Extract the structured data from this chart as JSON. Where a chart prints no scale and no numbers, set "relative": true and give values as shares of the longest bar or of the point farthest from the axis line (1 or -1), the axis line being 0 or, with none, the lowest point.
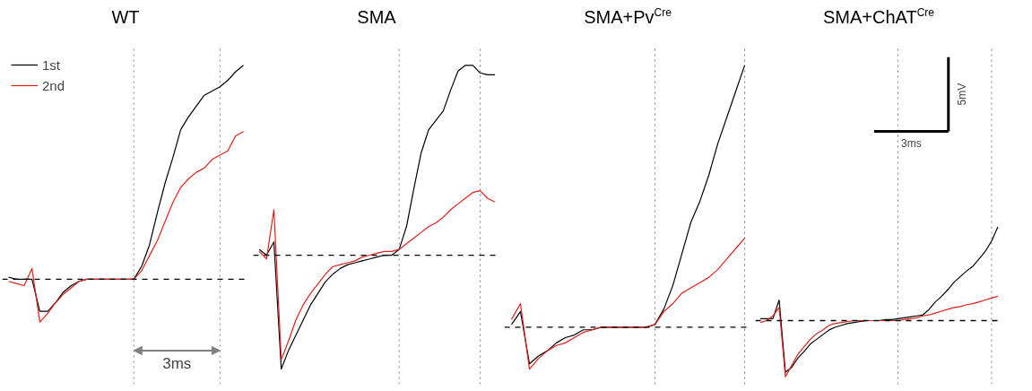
{
  "chart_data": [
    {
      "type": "line",
      "title": "WT",
      "relative": true,
      "tick_labels": false,
      "legend": "top left",
      "categories": [
        null,
        null,
        null,
        null,
        null,
        null,
        null,
        null,
        null,
        null,
        null,
        null,
        null,
        null,
        null,
        null,
        null,
        null,
        null,
        null,
        null,
        null,
        null,
        null,
        null,
        null,
        null,
        null,
        null,
        null,
        null
      ],
      "series": [
        {
          "name": "1st",
          "color": "#000000",
          "values": [
            0.01,
            0,
            0,
            0,
            -0.15,
            -0.15,
            -0.11,
            -0.06,
            -0.03,
            -0.01,
            0,
            0,
            0,
            0,
            0,
            0,
            0,
            0.06,
            0.16,
            0.31,
            0.45,
            0.57,
            0.7,
            0.76,
            0.81,
            0.86,
            0.88,
            0.9,
            0.93,
            0.97,
            1
          ]
        },
        {
          "name": "2nd",
          "color": "#e0201b",
          "values": [
            -0.01,
            -0.02,
            -0.03,
            0.05,
            -0.2,
            -0.16,
            -0.11,
            -0.07,
            -0.04,
            -0.01,
            0,
            0,
            0,
            0,
            0,
            0,
            0,
            0.04,
            0.11,
            0.18,
            0.27,
            0.36,
            0.43,
            0.47,
            0.5,
            0.52,
            0.56,
            0.58,
            0.6,
            0.67,
            0.69
          ]
        }
      ],
      "ref_lines": [
        {
          "axis": "y",
          "value": 0,
          "color": "#000000",
          "line_style": "dashed"
        }
      ],
      "annotations": [
        "3ms"
      ]
    },
    {
      "type": "line",
      "title": "SMA",
      "relative": true,
      "tick_labels": false,
      "categories": [
        null,
        null,
        null,
        null,
        null,
        null,
        null,
        null,
        null,
        null,
        null,
        null,
        null,
        null,
        null,
        null,
        null,
        null,
        null,
        null,
        null,
        null,
        null,
        null,
        null,
        null,
        null,
        null,
        null,
        null,
        null,
        null,
        null
      ],
      "series": [
        {
          "color": "#000000",
          "values": [
            0.03,
            0,
            0.07,
            -0.6,
            -0.5,
            -0.42,
            -0.34,
            -0.26,
            -0.2,
            -0.14,
            -0.1,
            -0.07,
            -0.05,
            -0.04,
            -0.03,
            -0.02,
            -0.01,
            0,
            0,
            0.03,
            0.15,
            0.35,
            0.54,
            0.66,
            0.71,
            0.76,
            0.87,
            0.97,
            1,
            1,
            0.96,
            0.95,
            0.95
          ]
        },
        {
          "color": "#e0201b",
          "values": [
            0.02,
            -0.02,
            0.24,
            -0.55,
            -0.45,
            -0.34,
            -0.26,
            -0.2,
            -0.15,
            -0.1,
            -0.06,
            -0.05,
            -0.04,
            -0.03,
            -0.01,
            0,
            0.01,
            0.02,
            0.02,
            0.03,
            0.06,
            0.09,
            0.12,
            0.15,
            0.17,
            0.2,
            0.24,
            0.27,
            0.3,
            0.33,
            0.34,
            0.3,
            0.28
          ]
        }
      ],
      "ref_lines": [
        {
          "axis": "y",
          "value": 0,
          "color": "#000000",
          "line_style": "dashed"
        }
      ]
    },
    {
      "type": "line",
      "title": "SMA+Pv$^{Cre}$",
      "relative": true,
      "tick_labels": false,
      "categories": [
        null,
        null,
        null,
        null,
        null,
        null,
        null,
        null,
        null,
        null,
        null,
        null,
        null,
        null,
        null,
        null,
        null,
        null,
        null,
        null,
        null,
        null,
        null,
        null,
        null,
        null,
        null
      ],
      "series": [
        {
          "color": "#000000",
          "values": [
            0.01,
            0.06,
            -0.14,
            -0.11,
            -0.09,
            -0.06,
            -0.04,
            -0.03,
            -0.01,
            -0.01,
            0,
            0,
            0,
            0,
            0,
            0,
            0.01,
            0.07,
            0.16,
            0.28,
            0.4,
            0.48,
            0.58,
            0.7,
            0.8,
            0.9,
            1
          ]
        },
        {
          "color": "#e0201b",
          "values": [
            0.03,
            0.09,
            -0.16,
            -0.12,
            -0.09,
            -0.07,
            -0.06,
            -0.04,
            -0.02,
            -0.01,
            0,
            0,
            0,
            0,
            0,
            0,
            0.01,
            0.06,
            0.09,
            0.13,
            0.15,
            0.17,
            0.19,
            0.22,
            0.26,
            0.3,
            0.34
          ]
        }
      ],
      "ref_lines": [
        {
          "axis": "y",
          "value": 0,
          "color": "#000000",
          "line_style": "dashed"
        }
      ]
    },
    {
      "type": "line",
      "title": "SMA+ChAT$^{Cre}$",
      "relative": true,
      "tick_labels": false,
      "categories": [
        null,
        null,
        null,
        null,
        null,
        null,
        null,
        null,
        null,
        null,
        null,
        null,
        null,
        null,
        null,
        null,
        null,
        null,
        null,
        null,
        null,
        null,
        null,
        null,
        null,
        null,
        null,
        null,
        null,
        null,
        null,
        null,
        null,
        null,
        null,
        null,
        null,
        null,
        null
      ],
      "series": [
        {
          "color": "#000000",
          "values": [
            0.02,
            0.02,
            0.02,
            0.22,
            -0.55,
            -0.5,
            -0.4,
            -0.33,
            -0.25,
            -0.2,
            -0.15,
            -0.1,
            -0.07,
            -0.05,
            -0.03,
            -0.02,
            -0.01,
            0,
            0,
            0,
            0.01,
            0.01,
            0.02,
            0.03,
            0.04,
            0.05,
            0.06,
            0.12,
            0.2,
            0.26,
            0.33,
            0.41,
            0.47,
            0.53,
            0.58,
            0.66,
            0.74,
            0.85,
            1
          ]
        },
        {
          "color": "#e0201b",
          "values": [
            -0.02,
            0,
            0.05,
            0.14,
            -0.6,
            -0.48,
            -0.36,
            -0.28,
            -0.2,
            -0.14,
            -0.1,
            -0.05,
            -0.03,
            -0.02,
            -0.01,
            0,
            0,
            0,
            0,
            0,
            0,
            0,
            0,
            0.01,
            0.02,
            0.03,
            0.05,
            0.06,
            0.08,
            0.1,
            0.12,
            0.14,
            0.15,
            0.17,
            0.18,
            0.2,
            0.22,
            0.24,
            0.26
          ]
        }
      ],
      "ref_lines": [
        {
          "axis": "y",
          "value": 0,
          "color": "#000000",
          "line_style": "dashed"
        }
      ],
      "annotations": [
        "5mV",
        "3ms"
      ]
    }
  ]
}
